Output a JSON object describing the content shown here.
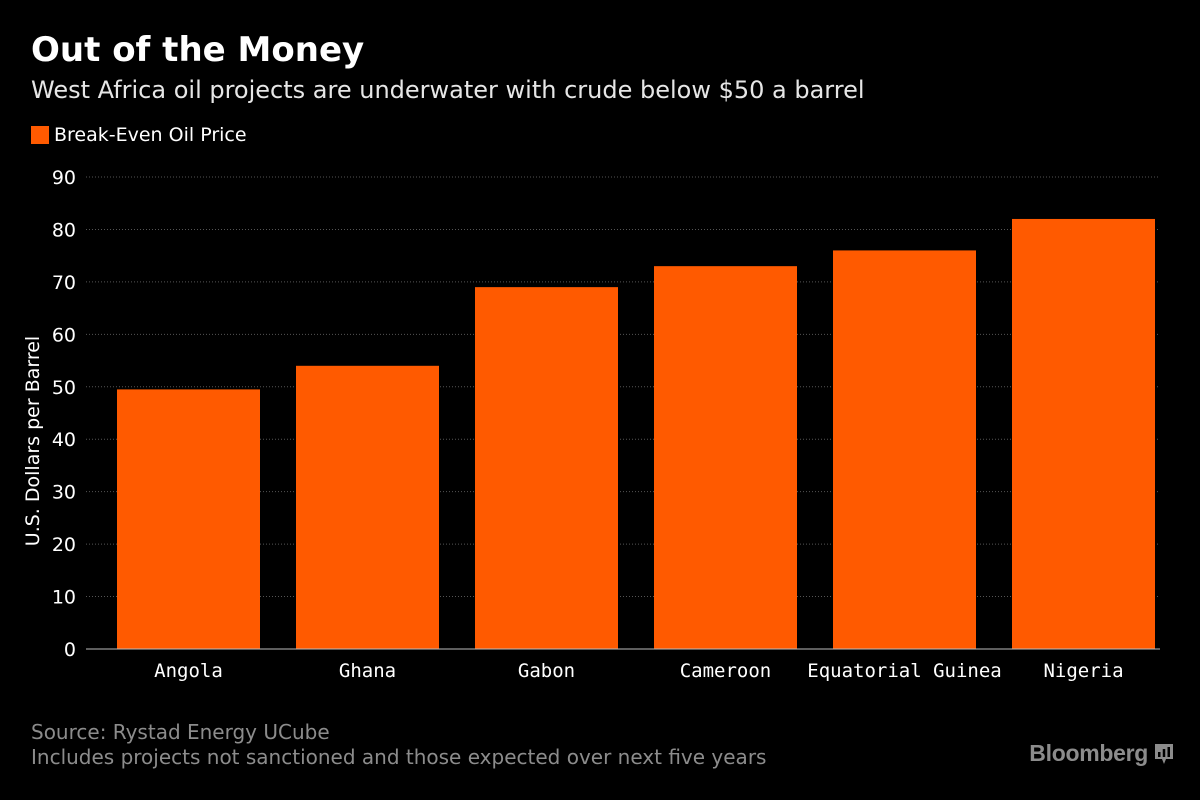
{
  "title": "Out of the Money",
  "subtitle": "West Africa oil projects are underwater with crude below $50 a barrel",
  "footer": {
    "source": "Source: Rystad Energy UCube",
    "note": "Includes projects not sanctioned and those expected over next five years"
  },
  "brand": {
    "name": "Bloomberg",
    "icon": "bloomberg-chart-icon"
  },
  "colors": {
    "background": "#000000",
    "bar": "#ff5a00",
    "grid": "#555555",
    "axis_text": "#ffffff"
  },
  "chart_data": {
    "type": "bar",
    "categories": [
      "Angola",
      "Ghana",
      "Gabon",
      "Cameroon",
      "Equatorial Guinea",
      "Nigeria"
    ],
    "series": [
      {
        "name": "Break-Even Oil Price",
        "values": [
          49.5,
          54,
          69,
          73,
          76,
          82
        ]
      }
    ],
    "ylabel": "U.S. Dollars per Barrel",
    "xlabel": "",
    "ylim": [
      0,
      90
    ],
    "yticks": [
      0,
      10,
      20,
      30,
      40,
      50,
      60,
      70,
      80,
      90
    ],
    "grid": true,
    "legend_position": "top-left"
  }
}
